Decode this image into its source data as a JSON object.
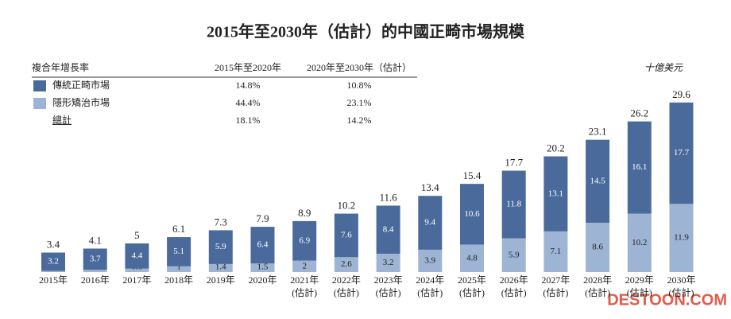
{
  "chart_data": {
    "type": "stacked_bar",
    "title": "2015年至2030年（估計）的中國正畸市場規模",
    "unit": "十億美元",
    "watermark": "DESTOON.COM",
    "categories": [
      [
        "2015年"
      ],
      [
        "2016年"
      ],
      [
        "2017年"
      ],
      [
        "2018年"
      ],
      [
        "2019年"
      ],
      [
        "2020年"
      ],
      [
        "2021年",
        "(估計)"
      ],
      [
        "2022年",
        "(估計)"
      ],
      [
        "2023年",
        "(估計)"
      ],
      [
        "2024年",
        "(估計)"
      ],
      [
        "2025年",
        "(估計)"
      ],
      [
        "2026年",
        "(估計)"
      ],
      [
        "2027年",
        "(估計)"
      ],
      [
        "2028年",
        "(估計)"
      ],
      [
        "2029年",
        "(估計)"
      ],
      [
        "2030年",
        "(估計)"
      ]
    ],
    "series": [
      {
        "name": "隱形矯治市場",
        "color": "#9db4d4",
        "values": [
          0.2,
          0.4,
          0.6,
          1.0,
          1.4,
          1.5,
          2.0,
          2.6,
          3.2,
          3.9,
          4.8,
          5.9,
          7.1,
          8.6,
          10.2,
          11.9
        ]
      },
      {
        "name": "傳統正畸市場",
        "color": "#4b6a9c",
        "values": [
          3.2,
          3.7,
          4.4,
          5.1,
          5.9,
          6.4,
          6.9,
          7.6,
          8.4,
          9.4,
          10.6,
          11.8,
          13.1,
          14.5,
          16.1,
          17.7
        ]
      }
    ],
    "totals": [
      3.4,
      4.1,
      5.0,
      6.1,
      7.3,
      7.9,
      8.9,
      10.2,
      11.6,
      13.4,
      15.4,
      17.7,
      20.2,
      23.1,
      26.2,
      29.6
    ],
    "cagr": {
      "header": [
        "複合年增長率",
        "2015年至2020年",
        "2020年至2030年（估計）"
      ],
      "series_rows": [
        [
          "44.4%",
          "23.1%"
        ],
        [
          "14.8%",
          "10.8%"
        ]
      ],
      "total_label": "總計",
      "total_row": [
        "18.1%",
        "14.2%"
      ]
    }
  }
}
